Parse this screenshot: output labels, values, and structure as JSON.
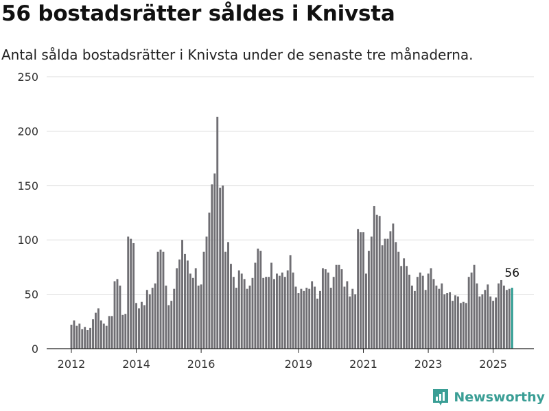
{
  "title": "56 bostadsrätter såldes i Knivsta",
  "subtitle": "Antal sålda bostadsrätter i Knivsta under de senaste tre månaderna.",
  "brand": {
    "name": "Newsworthy",
    "icon": "newsworthy-logo-icon",
    "color": "#3a9e95"
  },
  "chart_data": {
    "type": "bar",
    "title": "56 bostadsrätter såldes i Knivsta",
    "subtitle": "Antal sålda bostadsrätter i Knivsta under de senaste tre månaderna.",
    "xlabel": "",
    "ylabel": "",
    "ylim": [
      0,
      250
    ],
    "yticks": [
      0,
      50,
      100,
      150,
      200,
      250
    ],
    "xticks": [
      {
        "label": "2012",
        "index": 0
      },
      {
        "label": "2014",
        "index": 24
      },
      {
        "label": "2016",
        "index": 48
      },
      {
        "label": "2019",
        "index": 84
      },
      {
        "label": "2021",
        "index": 108
      },
      {
        "label": "2023",
        "index": 132
      },
      {
        "label": "2025",
        "index": 156
      }
    ],
    "grid": true,
    "bar_color": "#6f6e73",
    "highlight_color": "#2a9a8f",
    "highlight_label": "56",
    "values": [
      22,
      26,
      21,
      23,
      18,
      20,
      17,
      19,
      27,
      33,
      37,
      26,
      23,
      21,
      30,
      30,
      62,
      64,
      58,
      31,
      32,
      103,
      101,
      97,
      42,
      37,
      43,
      40,
      54,
      50,
      56,
      60,
      89,
      91,
      89,
      58,
      40,
      44,
      55,
      74,
      82,
      100,
      87,
      81,
      69,
      65,
      74,
      58,
      59,
      89,
      103,
      125,
      151,
      161,
      213,
      148,
      150,
      89,
      98,
      78,
      66,
      56,
      72,
      69,
      64,
      55,
      58,
      65,
      79,
      92,
      90,
      65,
      66,
      66,
      79,
      64,
      69,
      67,
      70,
      66,
      72,
      86,
      70,
      57,
      51,
      55,
      53,
      56,
      55,
      62,
      57,
      46,
      53,
      74,
      73,
      70,
      56,
      66,
      77,
      77,
      73,
      57,
      62,
      48,
      55,
      50,
      110,
      107,
      107,
      69,
      90,
      103,
      131,
      123,
      122,
      95,
      101,
      101,
      108,
      115,
      98,
      89,
      76,
      83,
      76,
      68,
      58,
      53,
      66,
      70,
      67,
      54,
      69,
      74,
      64,
      58,
      55,
      60,
      50,
      51,
      52,
      44,
      49,
      48,
      42,
      43,
      42,
      66,
      70,
      77,
      60,
      48,
      50,
      54,
      59,
      48,
      44,
      47,
      60,
      63,
      58,
      54,
      55,
      56
    ]
  }
}
